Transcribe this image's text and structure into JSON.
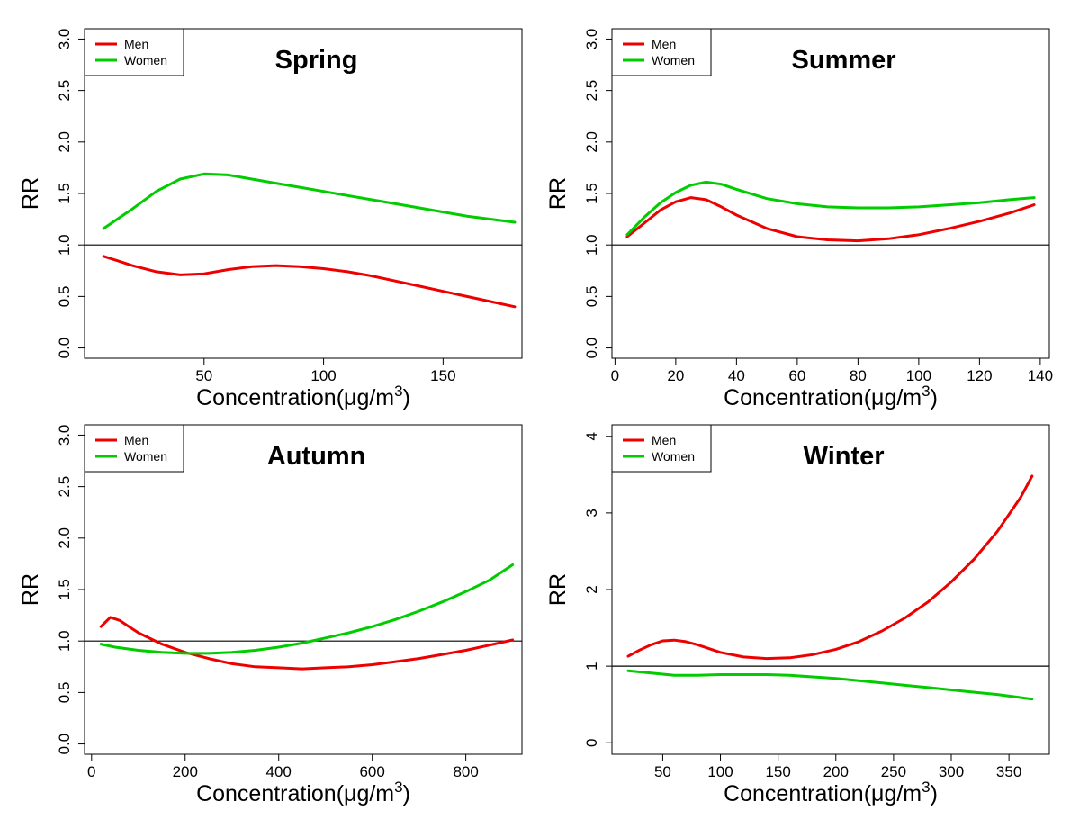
{
  "colors": {
    "men": "#ee0000",
    "women": "#00cc00",
    "ref_line": "#000000"
  },
  "chart_data": [
    {
      "type": "line",
      "title": "Spring",
      "xlabel": "Concentration(μg/m",
      "xlabel_sup": "3",
      "xlabel_close": ")",
      "ylabel": "RR",
      "xlim": [
        0,
        183
      ],
      "ylim": [
        -0.1,
        3.1
      ],
      "xticks": [
        50,
        100,
        150
      ],
      "xtick_labels": [
        "50",
        "100",
        "150"
      ],
      "yticks": [
        0,
        0.5,
        1,
        1.5,
        2,
        2.5,
        3
      ],
      "ytick_labels": [
        "0.0",
        "0.5",
        "1.0",
        "1.5",
        "2.0",
        "2.5",
        "3.0"
      ],
      "reference_line": 1.0,
      "legend": [
        "Men",
        "Women"
      ],
      "series": [
        {
          "name": "Men",
          "color_key": "men",
          "x": [
            8,
            20,
            30,
            40,
            50,
            60,
            70,
            80,
            90,
            100,
            110,
            120,
            130,
            140,
            150,
            160,
            170,
            180
          ],
          "y": [
            0.89,
            0.8,
            0.74,
            0.71,
            0.72,
            0.76,
            0.79,
            0.8,
            0.79,
            0.77,
            0.74,
            0.7,
            0.65,
            0.6,
            0.55,
            0.5,
            0.45,
            0.4
          ]
        },
        {
          "name": "Women",
          "color_key": "women",
          "x": [
            8,
            20,
            30,
            40,
            50,
            60,
            70,
            80,
            90,
            100,
            110,
            120,
            130,
            140,
            150,
            160,
            170,
            180
          ],
          "y": [
            1.16,
            1.35,
            1.52,
            1.64,
            1.69,
            1.68,
            1.64,
            1.6,
            1.56,
            1.52,
            1.48,
            1.44,
            1.4,
            1.36,
            1.32,
            1.28,
            1.25,
            1.22
          ]
        }
      ]
    },
    {
      "type": "line",
      "title": "Summer",
      "xlabel": "Concentration(μg/m",
      "xlabel_sup": "3",
      "xlabel_close": ")",
      "ylabel": "RR",
      "xlim": [
        -1,
        143
      ],
      "ylim": [
        -0.1,
        3.1
      ],
      "xticks": [
        0,
        20,
        40,
        60,
        80,
        100,
        120,
        140
      ],
      "xtick_labels": [
        "0",
        "20",
        "40",
        "60",
        "80",
        "100",
        "120",
        "140"
      ],
      "yticks": [
        0,
        0.5,
        1,
        1.5,
        2,
        2.5,
        3
      ],
      "ytick_labels": [
        "0.0",
        "0.5",
        "1.0",
        "1.5",
        "2.0",
        "2.5",
        "3.0"
      ],
      "reference_line": 1.0,
      "legend": [
        "Men",
        "Women"
      ],
      "series": [
        {
          "name": "Men",
          "color_key": "men",
          "x": [
            4,
            10,
            15,
            20,
            25,
            30,
            35,
            40,
            50,
            60,
            70,
            80,
            90,
            100,
            110,
            120,
            130,
            138
          ],
          "y": [
            1.08,
            1.22,
            1.34,
            1.42,
            1.46,
            1.44,
            1.37,
            1.29,
            1.16,
            1.08,
            1.05,
            1.04,
            1.06,
            1.1,
            1.16,
            1.23,
            1.31,
            1.39
          ]
        },
        {
          "name": "Women",
          "color_key": "women",
          "x": [
            4,
            10,
            15,
            20,
            25,
            30,
            35,
            40,
            50,
            60,
            70,
            80,
            90,
            100,
            110,
            120,
            130,
            138
          ],
          "y": [
            1.1,
            1.28,
            1.41,
            1.51,
            1.58,
            1.61,
            1.59,
            1.54,
            1.45,
            1.4,
            1.37,
            1.36,
            1.36,
            1.37,
            1.39,
            1.41,
            1.44,
            1.46
          ]
        }
      ]
    },
    {
      "type": "line",
      "title": "Autumn",
      "xlabel": "Concentration(μg/m",
      "xlabel_sup": "3",
      "xlabel_close": ")",
      "ylabel": "RR",
      "xlim": [
        -15,
        920
      ],
      "ylim": [
        -0.1,
        3.1
      ],
      "xticks": [
        0,
        200,
        400,
        600,
        800
      ],
      "xtick_labels": [
        "0",
        "200",
        "400",
        "600",
        "800"
      ],
      "yticks": [
        0,
        0.5,
        1,
        1.5,
        2,
        2.5,
        3
      ],
      "ytick_labels": [
        "0.0",
        "0.5",
        "1.0",
        "1.5",
        "2.0",
        "2.5",
        "3.0"
      ],
      "reference_line": 1.0,
      "legend": [
        "Men",
        "Women"
      ],
      "series": [
        {
          "name": "Men",
          "color_key": "men",
          "x": [
            20,
            40,
            60,
            80,
            100,
            150,
            200,
            250,
            300,
            350,
            400,
            450,
            500,
            550,
            600,
            650,
            700,
            750,
            800,
            850,
            900
          ],
          "y": [
            1.14,
            1.23,
            1.2,
            1.14,
            1.08,
            0.97,
            0.89,
            0.83,
            0.78,
            0.75,
            0.74,
            0.73,
            0.74,
            0.75,
            0.77,
            0.8,
            0.83,
            0.87,
            0.91,
            0.96,
            1.01
          ]
        },
        {
          "name": "Women",
          "color_key": "women",
          "x": [
            20,
            50,
            100,
            150,
            200,
            250,
            300,
            350,
            400,
            450,
            500,
            550,
            600,
            650,
            700,
            750,
            800,
            850,
            900
          ],
          "y": [
            0.97,
            0.94,
            0.91,
            0.89,
            0.88,
            0.88,
            0.89,
            0.91,
            0.94,
            0.98,
            1.03,
            1.08,
            1.14,
            1.21,
            1.29,
            1.38,
            1.48,
            1.59,
            1.74
          ]
        }
      ]
    },
    {
      "type": "line",
      "title": "Winter",
      "xlabel": "Concentration(μg/m",
      "xlabel_sup": "3",
      "xlabel_close": ")",
      "ylabel": "RR",
      "xlim": [
        6,
        385
      ],
      "ylim": [
        -0.15,
        4.15
      ],
      "xticks": [
        50,
        100,
        150,
        200,
        250,
        300,
        350
      ],
      "xtick_labels": [
        "50",
        "100",
        "150",
        "200",
        "250",
        "300",
        "350"
      ],
      "yticks": [
        0,
        1,
        2,
        3,
        4
      ],
      "ytick_labels": [
        "0",
        "1",
        "2",
        "3",
        "4"
      ],
      "reference_line": 1.0,
      "legend": [
        "Men",
        "Women"
      ],
      "series": [
        {
          "name": "Men",
          "color_key": "men",
          "x": [
            20,
            30,
            40,
            50,
            60,
            70,
            80,
            100,
            120,
            140,
            160,
            180,
            200,
            220,
            240,
            260,
            280,
            300,
            320,
            340,
            360,
            370
          ],
          "y": [
            1.13,
            1.21,
            1.28,
            1.33,
            1.34,
            1.32,
            1.28,
            1.18,
            1.12,
            1.1,
            1.11,
            1.15,
            1.22,
            1.32,
            1.46,
            1.63,
            1.84,
            2.1,
            2.4,
            2.76,
            3.2,
            3.48
          ]
        },
        {
          "name": "Women",
          "color_key": "women",
          "x": [
            20,
            40,
            60,
            80,
            100,
            120,
            140,
            160,
            180,
            200,
            220,
            240,
            260,
            280,
            300,
            320,
            340,
            360,
            370
          ],
          "y": [
            0.94,
            0.91,
            0.88,
            0.88,
            0.89,
            0.89,
            0.89,
            0.88,
            0.86,
            0.84,
            0.81,
            0.78,
            0.75,
            0.72,
            0.69,
            0.66,
            0.63,
            0.59,
            0.57
          ]
        }
      ]
    }
  ]
}
